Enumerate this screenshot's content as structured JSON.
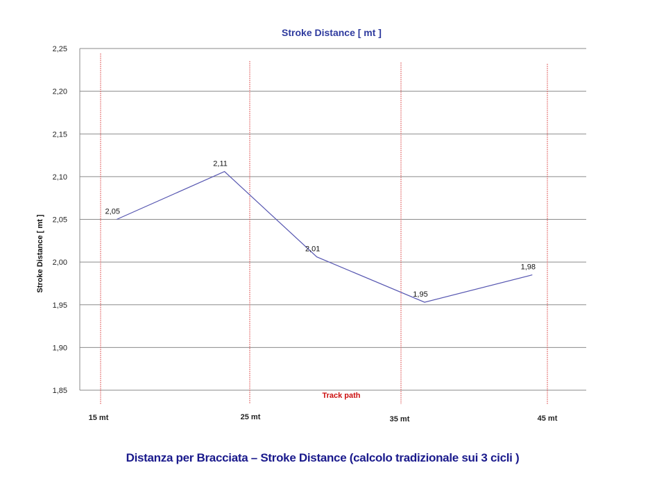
{
  "chart_data": {
    "type": "line",
    "title": "Stroke Distance   [ mt  ]",
    "ylabel": "Stroke Distance     [ mt ]",
    "xlabel": "Track  path",
    "ylim": [
      1.85,
      2.25
    ],
    "yticks": [
      "1,85",
      "1,90",
      "1,95",
      "2,00",
      "2,05",
      "2,10",
      "2,15",
      "2,20",
      "2,25"
    ],
    "ytick_values": [
      1.85,
      1.9,
      1.95,
      2.0,
      2.05,
      2.1,
      2.15,
      2.2,
      2.25
    ],
    "grid": true,
    "categories": [
      "15 mt",
      "25 mt",
      "35 mt",
      "45 mt"
    ],
    "x": [
      17,
      24,
      30,
      37,
      44
    ],
    "xlim": [
      14.6,
      47.5
    ],
    "series": [
      {
        "values": [
          2.05,
          2.106,
          2.006,
          1.953,
          1.985
        ],
        "data_labels": [
          "2,05",
          "2,11",
          "2,01",
          "1,95",
          "1,98"
        ]
      }
    ],
    "colors": {
      "line": "#5555b0",
      "gridline": "#8a8a8a",
      "marker_lines": "#e06060",
      "title": "#2e3a9e",
      "xlabel": "#cc1111"
    }
  },
  "caption": "Distanza  per Bracciata – Stroke Distance  (calcolo tradizionale  sui 3 cicli )"
}
